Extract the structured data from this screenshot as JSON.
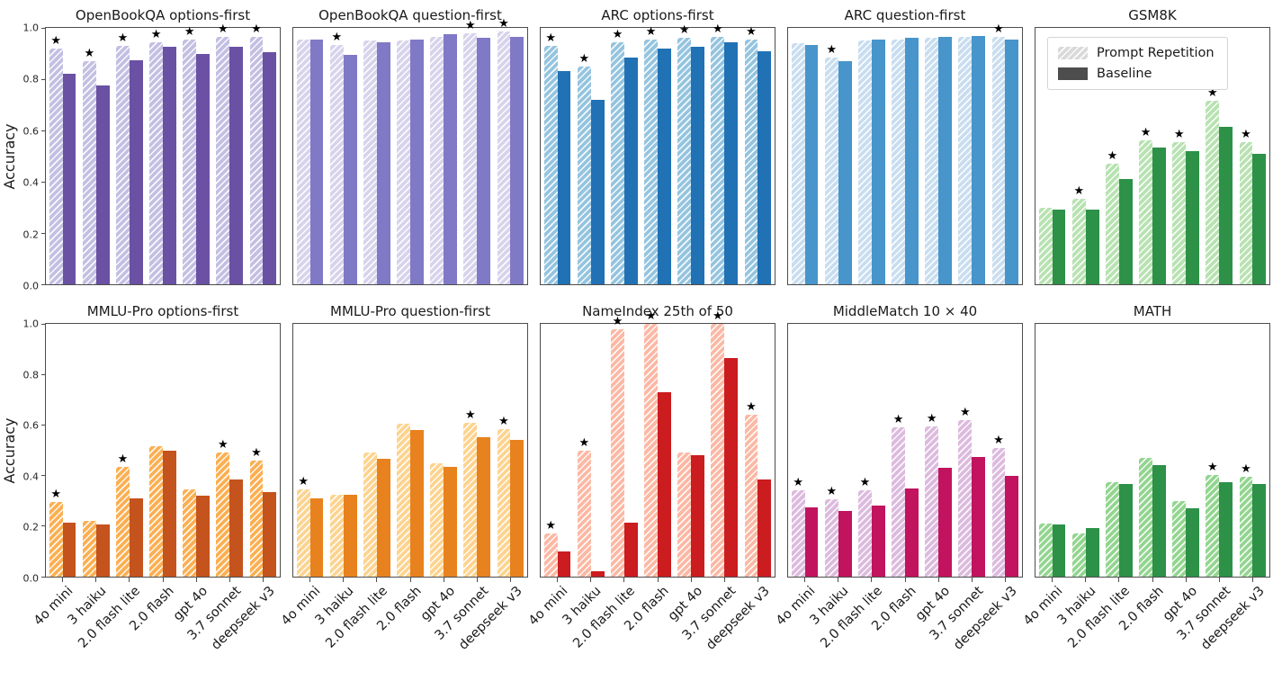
{
  "figure_title": "",
  "chart_data": {
    "type": "bar",
    "categories": [
      "4o mini",
      "3 haiku",
      "2.0 flash lite",
      "2.0 flash",
      "gpt 4o",
      "3.7 sonnet",
      "deepseek v3"
    ],
    "series_names": [
      "Prompt Repetition",
      "Baseline"
    ],
    "ylabel": "Accuracy",
    "ylim": [
      0.0,
      1.0
    ],
    "yticks": [
      0.0,
      0.2,
      0.4,
      0.6,
      0.8,
      1.0
    ],
    "grid": false,
    "legend_position": "upper-left of GSM8K subplot",
    "legend": {
      "items": [
        {
          "label": "Prompt Repetition",
          "swatch_color": "#d9d9d9",
          "hatched": true
        },
        {
          "label": "Baseline",
          "swatch_color": "#4d4d4d",
          "hatched": false
        }
      ]
    },
    "star_note": "black star marks significance above Prompt Repetition bar",
    "subplots": [
      {
        "title": "OpenBookQA options-first",
        "row": 0,
        "col": 0,
        "colors": {
          "repetition": "#c3bfe3",
          "baseline": "#6a51a3"
        },
        "prompt_repetition": [
          0.92,
          0.87,
          0.93,
          0.945,
          0.955,
          0.965,
          0.965
        ],
        "baseline": [
          0.82,
          0.775,
          0.875,
          0.925,
          0.9,
          0.925,
          0.905
        ],
        "stars": [
          true,
          true,
          true,
          true,
          true,
          true,
          true
        ]
      },
      {
        "title": "OpenBookQA question-first",
        "row": 0,
        "col": 1,
        "colors": {
          "repetition": "#d7d3ec",
          "baseline": "#8079c6"
        },
        "prompt_repetition": [
          0.955,
          0.935,
          0.95,
          0.95,
          0.965,
          0.98,
          0.985
        ],
        "baseline": [
          0.955,
          0.895,
          0.945,
          0.955,
          0.975,
          0.96,
          0.965
        ],
        "stars": [
          false,
          true,
          false,
          false,
          false,
          true,
          true
        ]
      },
      {
        "title": "ARC options-first",
        "row": 0,
        "col": 2,
        "colors": {
          "repetition": "#94c4df",
          "baseline": "#2171b5"
        },
        "prompt_repetition": [
          0.93,
          0.85,
          0.945,
          0.955,
          0.96,
          0.965,
          0.955
        ],
        "baseline": [
          0.83,
          0.72,
          0.885,
          0.92,
          0.925,
          0.945,
          0.91
        ],
        "stars": [
          true,
          true,
          true,
          true,
          true,
          true,
          true
        ]
      },
      {
        "title": "ARC question-first",
        "row": 0,
        "col": 3,
        "colors": {
          "repetition": "#c8ddf0",
          "baseline": "#4795ca"
        },
        "prompt_repetition": [
          0.94,
          0.885,
          0.95,
          0.955,
          0.96,
          0.965,
          0.965
        ],
        "baseline": [
          0.935,
          0.87,
          0.955,
          0.96,
          0.965,
          0.97,
          0.955
        ],
        "stars": [
          false,
          true,
          false,
          false,
          false,
          false,
          true
        ]
      },
      {
        "title": "GSM8K",
        "row": 0,
        "col": 4,
        "legend": true,
        "colors": {
          "repetition": "#b7e2b1",
          "baseline": "#2d9148"
        },
        "prompt_repetition": [
          0.3,
          0.335,
          0.47,
          0.56,
          0.555,
          0.715,
          0.555
        ],
        "baseline": [
          0.29,
          0.29,
          0.41,
          0.535,
          0.52,
          0.615,
          0.51
        ],
        "stars": [
          false,
          true,
          true,
          true,
          true,
          true,
          true
        ]
      },
      {
        "title": "MMLU-Pro options-first",
        "row": 1,
        "col": 0,
        "colors": {
          "repetition": "#fbaf52",
          "baseline": "#c4531d"
        },
        "prompt_repetition": [
          0.295,
          0.22,
          0.435,
          0.515,
          0.345,
          0.49,
          0.46
        ],
        "baseline": [
          0.215,
          0.205,
          0.31,
          0.5,
          0.32,
          0.385,
          0.335
        ],
        "stars": [
          true,
          false,
          true,
          false,
          false,
          true,
          true
        ]
      },
      {
        "title": "MMLU-Pro question-first",
        "row": 1,
        "col": 1,
        "colors": {
          "repetition": "#fdd38f",
          "baseline": "#e8821e"
        },
        "prompt_repetition": [
          0.345,
          0.325,
          0.49,
          0.605,
          0.45,
          0.61,
          0.585
        ],
        "baseline": [
          0.31,
          0.325,
          0.465,
          0.58,
          0.435,
          0.55,
          0.54
        ],
        "stars": [
          true,
          false,
          false,
          false,
          false,
          true,
          true
        ]
      },
      {
        "title": "NameIndex 25th of 50",
        "row": 1,
        "col": 2,
        "colors": {
          "repetition": "#fcb8a4",
          "baseline": "#cb1c1f"
        },
        "prompt_repetition": [
          0.17,
          0.5,
          0.98,
          1.0,
          0.49,
          1.0,
          0.64
        ],
        "baseline": [
          0.1,
          0.02,
          0.215,
          0.73,
          0.48,
          0.865,
          0.385
        ],
        "stars": [
          true,
          true,
          true,
          true,
          false,
          true,
          true
        ]
      },
      {
        "title": "MiddleMatch 10 × 40",
        "row": 1,
        "col": 3,
        "colors": {
          "repetition": "#dcbade",
          "baseline": "#c1135e"
        },
        "prompt_repetition": [
          0.34,
          0.305,
          0.34,
          0.59,
          0.595,
          0.62,
          0.51
        ],
        "baseline": [
          0.275,
          0.26,
          0.28,
          0.35,
          0.43,
          0.475,
          0.4
        ],
        "stars": [
          true,
          true,
          true,
          true,
          true,
          true,
          true
        ]
      },
      {
        "title": "MATH",
        "row": 1,
        "col": 4,
        "colors": {
          "repetition": "#92d58f",
          "baseline": "#2d9148"
        },
        "prompt_repetition": [
          0.21,
          0.172,
          0.375,
          0.47,
          0.3,
          0.402,
          0.395
        ],
        "baseline": [
          0.205,
          0.192,
          0.368,
          0.443,
          0.272,
          0.373,
          0.368
        ],
        "stars": [
          false,
          false,
          false,
          false,
          false,
          true,
          true
        ]
      }
    ]
  }
}
